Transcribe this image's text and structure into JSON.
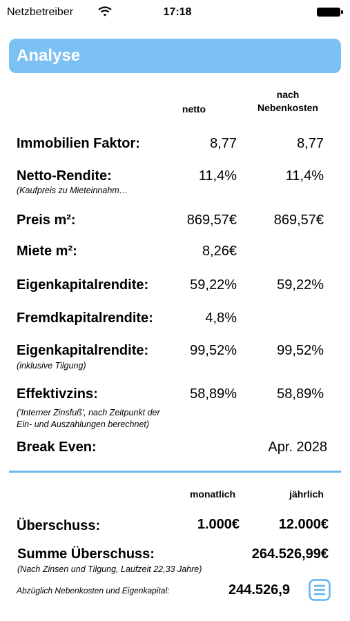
{
  "status_bar": {
    "carrier": "Netzbetreiber",
    "time": "17:18"
  },
  "header": {
    "title": "Analyse"
  },
  "columns": [
    "netto",
    "nach Nebenkosten"
  ],
  "rows": [
    {
      "label": "Immobilien Faktor:",
      "netto": "8,77",
      "nach": "8,77"
    },
    {
      "label": "Netto-Rendite:",
      "note": "(Kaufpreis zu Mieteinnahm…",
      "netto": "11,4%",
      "nach": "11,4%"
    },
    {
      "label": "Preis m²:",
      "netto": "869,57€",
      "nach": "869,57€"
    },
    {
      "label": "Miete m²:",
      "netto": "8,26€"
    },
    {
      "label": "Eigenkapitalrendite:",
      "netto": "59,22%",
      "nach": "59,22%"
    },
    {
      "label": "Fremdkapitalrendite:",
      "netto": "4,8%"
    },
    {
      "label": "Eigenkapitalrendite:",
      "note": "(inklusive Tilgung)",
      "netto": "99,52%",
      "nach": "99,52%"
    },
    {
      "label": "Effektivzins:",
      "note": [
        "('Interner Zinsfuß', nach Zeitpunkt der",
        "Ein- und Auszahlungen berechnet)"
      ],
      "netto": "58,89%",
      "nach": "58,89%"
    },
    {
      "label": "Break Even:",
      "value": "Apr. 2028"
    }
  ],
  "summary": {
    "columns": [
      "monatlich",
      "jährlich"
    ],
    "surplus": {
      "label": "Überschuss:",
      "monthly": "1.000€",
      "yearly": "12.000€"
    },
    "total": {
      "label": "Summe Überschuss:",
      "value": "264.526,99€",
      "note": "(Nach Zinsen und Tilgung, Laufzeit 22,33 Jahre)"
    },
    "net": {
      "label": "Abzüglich Nebenkosten und Eigenkapital:",
      "value": "244.526,9"
    }
  }
}
